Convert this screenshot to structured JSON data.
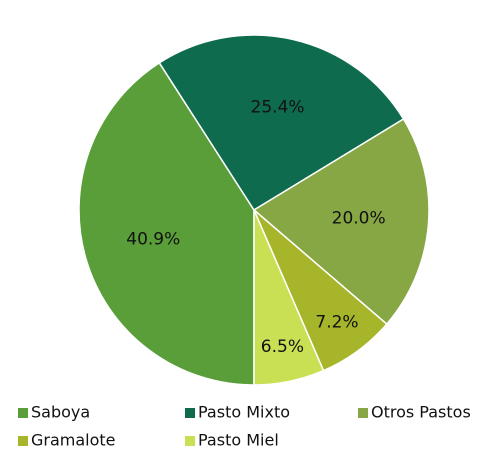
{
  "chart_data": {
    "type": "pie",
    "categories": [
      "Saboya",
      "Pasto Mixto",
      "Otros Pastos",
      "Gramalote",
      "Pasto Miel"
    ],
    "values": [
      40.9,
      25.4,
      20.0,
      7.2,
      6.5
    ],
    "value_labels": [
      "40.9%",
      "25.4%",
      "20.0%",
      "7.2%",
      "6.5%"
    ],
    "colors": [
      "#5a9e3a",
      "#0e6b4e",
      "#86a744",
      "#a6b52a",
      "#c9df54"
    ],
    "legend": "bottom"
  }
}
